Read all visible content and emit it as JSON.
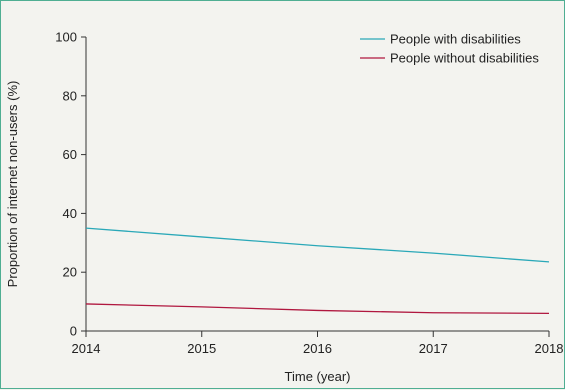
{
  "chart_data": {
    "type": "line",
    "title": "",
    "xlabel": "Time (year)",
    "ylabel": "Proportion of internet non-users (%)",
    "x": [
      2014,
      2015,
      2016,
      2017,
      2018
    ],
    "xlim": [
      2014,
      2018
    ],
    "ylim": [
      0,
      100
    ],
    "yticks": [
      0,
      20,
      40,
      60,
      80,
      100
    ],
    "grid": false,
    "legend_position": "top-right",
    "series": [
      {
        "name": "People with disabilities",
        "color": "#2aa8b8",
        "values": [
          35,
          32,
          29,
          26.5,
          23.5
        ]
      },
      {
        "name": "People without disabilities",
        "color": "#b0173f",
        "values": [
          9.2,
          8.2,
          7.0,
          6.2,
          6.0
        ]
      }
    ]
  }
}
